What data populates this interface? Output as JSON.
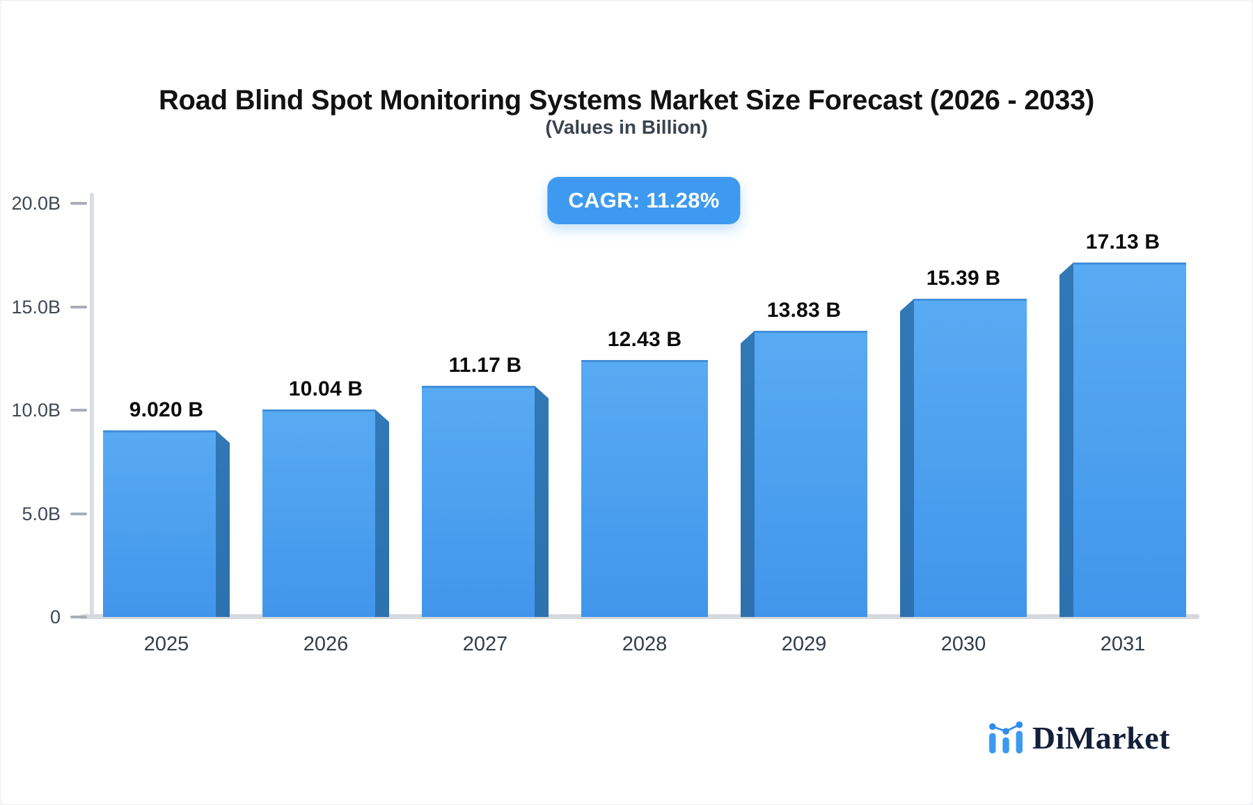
{
  "header": {
    "title": "Road Blind Spot Monitoring Systems Market Size Forecast (2026 - 2033)",
    "subtitle": "(Values in Billion)"
  },
  "badge": {
    "label": "CAGR: 11.28%"
  },
  "chart_data": {
    "type": "bar",
    "title": "Road Blind Spot Monitoring Systems Market Size Forecast (2026 - 2033)",
    "subtitle": "(Values in Billion)",
    "unit": "Billion",
    "categories": [
      "2025",
      "2026",
      "2027",
      "2028",
      "2029",
      "2030",
      "2031"
    ],
    "values": [
      9.02,
      10.04,
      11.17,
      12.43,
      13.83,
      15.39,
      17.13
    ],
    "value_labels": [
      "9.020 B",
      "10.04 B",
      "11.17 B",
      "12.43 B",
      "13.83 B",
      "15.39 B",
      "17.13 B"
    ],
    "ylim": [
      0,
      20
    ],
    "yticks": [
      {
        "value": 0,
        "label": "0"
      },
      {
        "value": 5,
        "label": "5.0B"
      },
      {
        "value": 10,
        "label": "10.0B"
      },
      {
        "value": 15,
        "label": "15.0B"
      },
      {
        "value": 20,
        "label": "20.0B"
      }
    ],
    "xlabel": "",
    "ylabel": "",
    "grid": false,
    "legend": false,
    "style": "3d-extruded-bars, perspective toward center"
  },
  "logo": {
    "text": "DiMarket",
    "icon": "bar-chart-trend-icon"
  },
  "colors": {
    "accent": "#3E9AF0",
    "bar_face_top": "#58AAF2",
    "bar_face_bottom": "#4196EB",
    "bar_face_edge": "#418FD9",
    "bar_side": "#2D71AF",
    "axis_line": "#DADDE1",
    "baseline": "#D6D9DD",
    "tick_dash": "#A8AEB7",
    "tick_text": "#3E4855",
    "year_text": "#323D4B",
    "value_text": "#0B0B0C",
    "title_text": "#121212",
    "subtitle_text": "#3A434F",
    "logo_text": "#14203A",
    "logo_icon": "#3B9AF0",
    "logo_icon_accent": "#2F8CF0"
  }
}
